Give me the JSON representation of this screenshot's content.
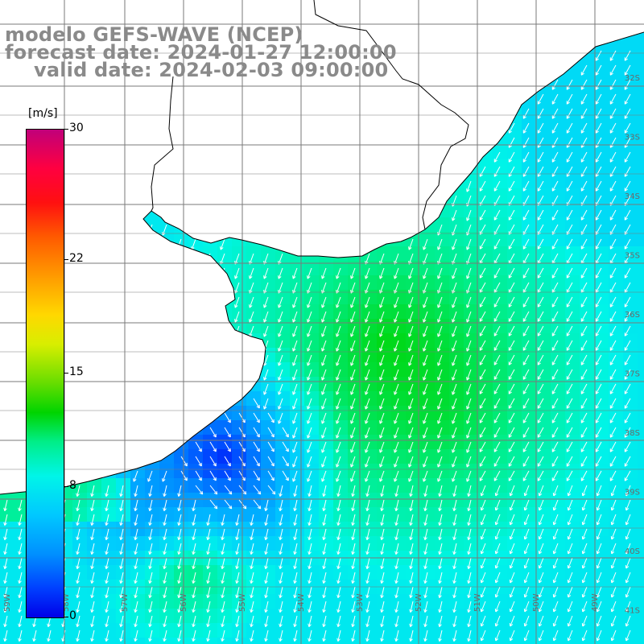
{
  "title": {
    "line1": "modelo GEFS-WAVE (NCEP)",
    "line2": "forecast date: 2024-01-27 12:00:00",
    "line3": "valid date: 2024-02-03 09:00:00"
  },
  "colorbar": {
    "units": "[m/s]",
    "ticks": [
      {
        "label": "30",
        "value": 30
      },
      {
        "label": "22",
        "value": 22
      },
      {
        "label": "15",
        "value": 15
      },
      {
        "label": "8",
        "value": 8
      },
      {
        "label": "0",
        "value": 0
      }
    ],
    "min": 0,
    "max": 30,
    "gradient_colors": [
      "#c0007a",
      "#ff1010",
      "#ff9a00",
      "#ffd800",
      "#00d400",
      "#00f5e8",
      "#00c8ff",
      "#0040ff",
      "#0000e8"
    ]
  },
  "map": {
    "land_color": "#ffffff",
    "grid_color": "#7a7a7a",
    "arrow_color": "#ffffff",
    "coast_color": "#000000",
    "lat_labels": [
      "32S",
      "33S",
      "34S",
      "35S",
      "36S",
      "37S",
      "38S",
      "39S",
      "40S",
      "41S"
    ],
    "lon_labels": [
      "59W",
      "58W",
      "57W",
      "56W",
      "55W",
      "54W",
      "53W",
      "52W",
      "51W",
      "50W",
      "49W"
    ],
    "field_description": "Wind speed [m/s] with direction arrows over ocean, land masked white"
  }
}
